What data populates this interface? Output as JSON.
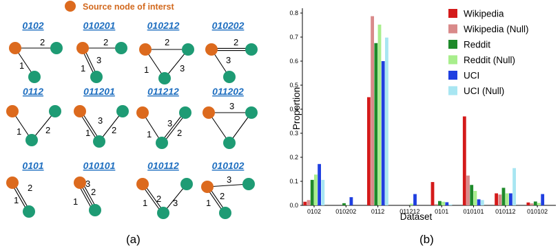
{
  "colors": {
    "source_node": "#dc6a1e",
    "other_node": "#1e9b74",
    "motif_code": "#1f6fc0",
    "source_label": "#d2691e"
  },
  "panel_a": {
    "source_label": "Source node of interst",
    "caption": "(a)",
    "motifs": [
      {
        "code": "0102"
      },
      {
        "code": "010201"
      },
      {
        "code": "010212"
      },
      {
        "code": "010202"
      },
      {
        "code": "0112"
      },
      {
        "code": "011201"
      },
      {
        "code": "011212"
      },
      {
        "code": "011202"
      },
      {
        "code": "0101"
      },
      {
        "code": "010101"
      },
      {
        "code": "010112"
      },
      {
        "code": "010102"
      }
    ]
  },
  "panel_b": {
    "caption": "(b)"
  },
  "chart_data": {
    "type": "bar",
    "xlabel": "Dataset",
    "ylabel": "Proportion",
    "ylim": [
      0,
      0.82
    ],
    "yticks": [
      0.0,
      0.1,
      0.2,
      0.3,
      0.4,
      0.5,
      0.6,
      0.7,
      0.8
    ],
    "ytick_labels": [
      "0.0",
      "0.1",
      "0.2",
      "0.3",
      "0.4",
      "0.5",
      "0.6",
      "0.7",
      "0.8"
    ],
    "categories": [
      "0102",
      "010202",
      "0112",
      "011212",
      "0101",
      "010101",
      "010112",
      "010102"
    ],
    "legend_position": "top-right",
    "grid": false,
    "series": [
      {
        "name": "Wikipedia",
        "color": "#d41a1a",
        "values": [
          0.015,
          0.0,
          0.45,
          0.0,
          0.097,
          0.37,
          0.05,
          0.012
        ]
      },
      {
        "name": "Wikipedia (Null)",
        "color": "#d98a8a",
        "values": [
          0.022,
          0.0,
          0.787,
          0.0,
          0.005,
          0.124,
          0.045,
          0.008
        ]
      },
      {
        "name": "Reddit",
        "color": "#1e8a2a",
        "values": [
          0.106,
          0.009,
          0.675,
          0.0,
          0.018,
          0.085,
          0.073,
          0.016
        ]
      },
      {
        "name": "Reddit (Null)",
        "color": "#a8ee8c",
        "values": [
          0.128,
          0.002,
          0.752,
          0.007,
          0.015,
          0.06,
          0.05,
          0.01
        ]
      },
      {
        "name": "UCI",
        "color": "#1f3fe0",
        "values": [
          0.172,
          0.034,
          0.6,
          0.047,
          0.013,
          0.025,
          0.05,
          0.047
        ]
      },
      {
        "name": "UCI (Null)",
        "color": "#a8e6f2",
        "values": [
          0.106,
          0.0,
          0.698,
          0.0,
          0.004,
          0.022,
          0.155,
          0.0
        ]
      }
    ]
  }
}
